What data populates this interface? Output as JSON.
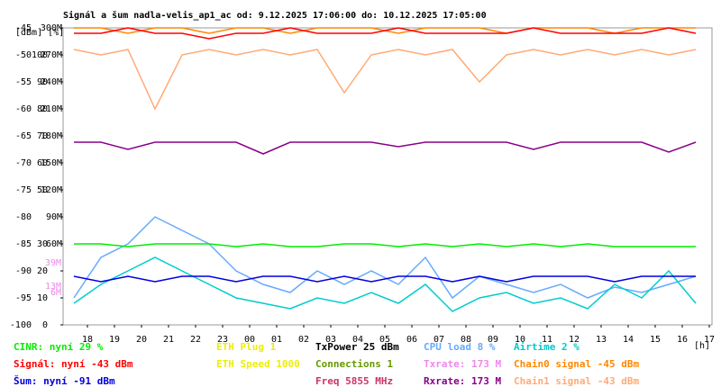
{
  "chart_data": {
    "type": "line",
    "title": "Signál a šum nadla-velis_ap1_ac od: 9.12.2025 17:06:00 do: 10.12.2025 17:05:00",
    "axis_header": "[dBm] [%]",
    "x_unit": "[h]",
    "x": [
      17.5,
      18.5,
      19.5,
      20.5,
      21.5,
      22.5,
      23.5,
      24.5,
      25.5,
      26.5,
      27.5,
      28.5,
      29.5,
      30.5,
      31.5,
      32.5,
      33.5,
      34.5,
      35.5,
      36.5,
      37.5,
      38.5,
      39.5,
      40.5
    ],
    "xlim": [
      17.1,
      41.1
    ],
    "xticks": [
      18,
      19,
      20,
      21,
      22,
      23,
      {
        "value": 24,
        "label": "00"
      },
      {
        "value": 25,
        "label": "01"
      },
      {
        "value": 26,
        "label": "02"
      },
      {
        "value": 27,
        "label": "03"
      },
      {
        "value": 28,
        "label": "04"
      },
      {
        "value": 29,
        "label": "05"
      },
      {
        "value": 30,
        "label": "06"
      },
      {
        "value": 31,
        "label": "07"
      },
      {
        "value": 32,
        "label": "08"
      },
      {
        "value": 33,
        "label": "09"
      },
      {
        "value": 34,
        "label": "10"
      },
      {
        "value": 35,
        "label": "11"
      },
      {
        "value": 36,
        "label": "12"
      },
      {
        "value": 37,
        "label": "13"
      },
      {
        "value": 38,
        "label": "14"
      },
      {
        "value": 39,
        "label": "15"
      },
      {
        "value": 40,
        "label": "16"
      },
      {
        "value": 41,
        "label": "17"
      }
    ],
    "ylim": [
      -100,
      -45
    ],
    "yticks": [
      -45,
      -50,
      -55,
      -60,
      -65,
      -70,
      -75,
      -80,
      -85,
      -90,
      -95,
      -100
    ],
    "y2lim": [
      0,
      110
    ],
    "y2ticks": [
      100,
      90,
      80,
      70,
      60,
      50,
      30,
      20,
      10,
      0
    ],
    "y3lim": [
      -30,
      300
    ],
    "y3ticks": [
      {
        "value": 300,
        "label": "300M"
      },
      {
        "value": 270,
        "label": "270M"
      },
      {
        "value": 240,
        "label": "240M"
      },
      {
        "value": 210,
        "label": "210M"
      },
      {
        "value": 180,
        "label": "180M"
      },
      {
        "value": 150,
        "label": "150M"
      },
      {
        "value": 120,
        "label": "120M"
      },
      {
        "value": 90,
        "label": "90M"
      },
      {
        "value": 60,
        "label": "60M"
      }
    ],
    "series": [
      {
        "name": "Chain1 signal",
        "color": "#ffaa77",
        "axis": "y",
        "values": [
          -49,
          -50,
          -49,
          -60,
          -50,
          -49,
          -50,
          -49,
          -50,
          -49,
          -57,
          -50,
          -49,
          -50,
          -49,
          -55,
          -50,
          -49,
          -50,
          -49,
          -50,
          -49,
          -50,
          -49
        ]
      },
      {
        "name": "Chain0 signal",
        "color": "#ff8800",
        "axis": "y",
        "values": [
          -45,
          -45,
          -46,
          -45,
          -45,
          -46,
          -45,
          -45,
          -46,
          -45,
          -45,
          -45,
          -46,
          -45,
          -45,
          -45,
          -46,
          -45,
          -45,
          -45,
          -46,
          -45,
          -45,
          -45
        ]
      },
      {
        "name": "Signál",
        "color": "#ff0000",
        "axis": "y",
        "values": [
          -46,
          -46,
          -45,
          -46,
          -46,
          -47,
          -46,
          -46,
          -45,
          -46,
          -46,
          -46,
          -45,
          -46,
          -46,
          -46,
          -46,
          -45,
          -46,
          -46,
          -46,
          -46,
          -45,
          -46
        ]
      },
      {
        "name": "Rxrate",
        "color": "#880088",
        "axis": "y3",
        "values": [
          173,
          173,
          165,
          173,
          173,
          173,
          173,
          160,
          173,
          173,
          173,
          173,
          168,
          173,
          173,
          173,
          173,
          165,
          173,
          173,
          173,
          173,
          162,
          173
        ]
      },
      {
        "name": "CPU load",
        "color": "#66aaff",
        "axis": "y2",
        "values": [
          10,
          25,
          30,
          40,
          35,
          30,
          20,
          15,
          12,
          20,
          15,
          20,
          15,
          25,
          10,
          18,
          15,
          12,
          15,
          10,
          14,
          12,
          15,
          18
        ]
      },
      {
        "name": "Airtime",
        "color": "#00cccc",
        "axis": "y2",
        "values": [
          8,
          15,
          20,
          25,
          20,
          15,
          10,
          8,
          6,
          10,
          8,
          12,
          8,
          15,
          5,
          10,
          12,
          8,
          10,
          6,
          15,
          10,
          20,
          8
        ]
      },
      {
        "name": "CINR",
        "color": "#00ee00",
        "axis": "y2",
        "values": [
          30,
          30,
          29,
          30,
          30,
          30,
          29,
          30,
          29,
          29,
          30,
          30,
          29,
          30,
          29,
          30,
          29,
          30,
          29,
          30,
          29,
          29,
          29,
          29
        ]
      },
      {
        "name": "Šum",
        "color": "#0000dd",
        "axis": "y",
        "values": [
          -91,
          -92,
          -91,
          -92,
          -91,
          -91,
          -92,
          -91,
          -91,
          -92,
          -91,
          -92,
          -91,
          -91,
          -92,
          -91,
          -92,
          -91,
          -91,
          -91,
          -92,
          -91,
          -91,
          -91
        ]
      }
    ],
    "rate_markers": [
      {
        "value": 39,
        "label": "39M"
      },
      {
        "value": 13,
        "label": "13M"
      },
      {
        "value": 6,
        "label": "6M"
      }
    ],
    "legend": [
      [
        {
          "text": "CINR: nyní 29 %",
          "color": "#00ee00"
        },
        {
          "text": "Signál: nyní -43 dBm",
          "color": "#ff0000"
        },
        {
          "text": "Šum: nyní -91 dBm",
          "color": "#0000dd"
        }
      ],
      [
        {
          "text": "ETH Plug 1",
          "color": "#eeee00"
        },
        {
          "text": "ETH Speed 1000",
          "color": "#eeee00"
        }
      ],
      [
        {
          "text": "TxPower 25 dBm",
          "color": "#000000"
        },
        {
          "text": "Connections 1",
          "color": "#669900"
        },
        {
          "text": "Freq 5855 MHz",
          "color": "#cc3366"
        }
      ],
      [
        {
          "text": "CPU load 8 %",
          "color": "#66aaff"
        },
        {
          "text": "Txrate: 173 M",
          "color": "#ee88ee"
        },
        {
          "text": "Rxrate: 173 M",
          "color": "#880088"
        }
      ],
      [
        {
          "text": "Airtime 2 %",
          "color": "#00cccc"
        },
        {
          "text": "Chain0 signal -45 dBm",
          "color": "#ff8800"
        },
        {
          "text": "Chain1 signal -43 dBm",
          "color": "#ffaa77"
        }
      ]
    ]
  }
}
